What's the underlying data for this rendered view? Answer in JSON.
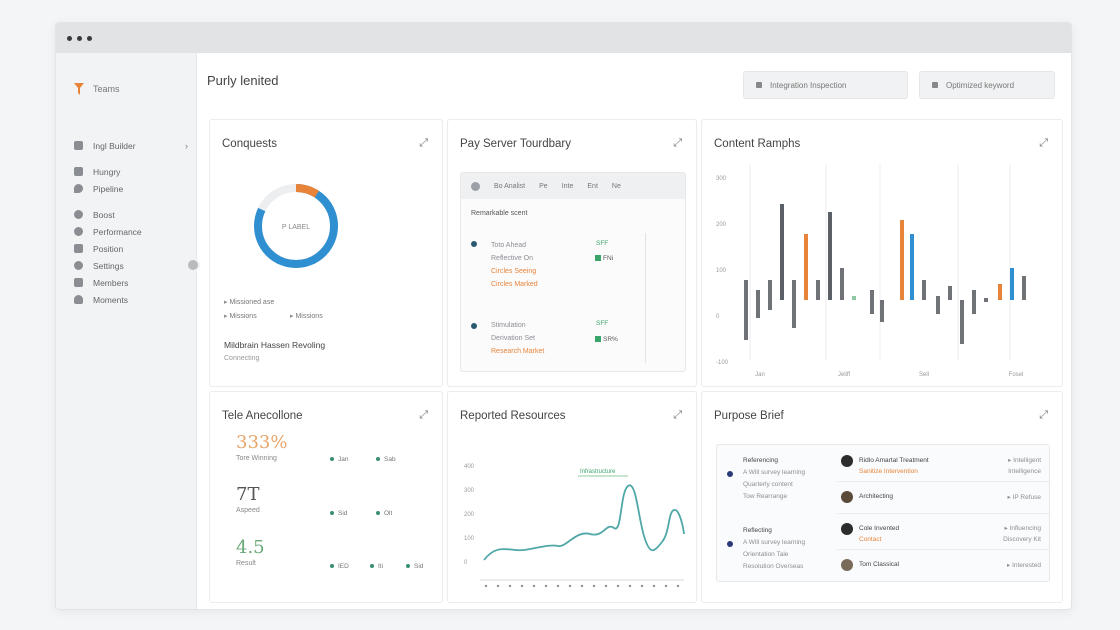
{
  "sidebar": {
    "brand": "Teams",
    "items": [
      {
        "label": "Ingl Builder",
        "icon": "folder-icon",
        "chevron": true
      },
      {
        "label": "Hungry",
        "icon": "grid-icon"
      },
      {
        "label": "Pipeline",
        "icon": "pin-icon"
      },
      {
        "label": "Boost",
        "icon": "gear-icon"
      },
      {
        "label": "Performance",
        "icon": "globe-icon"
      },
      {
        "label": "Position",
        "icon": "edit-icon"
      },
      {
        "label": "Settings",
        "icon": "gear-icon"
      },
      {
        "label": "Members",
        "icon": "shield-icon"
      },
      {
        "label": "Moments",
        "icon": "bell-icon"
      }
    ]
  },
  "header": {
    "title": "Purly lenited",
    "buttons": [
      "Integration Inspection",
      "Optimized keyword"
    ]
  },
  "cards": {
    "conquests": {
      "title": "Conquests",
      "donut_label": "P LABEL",
      "donut_value": 0.82,
      "legend": [
        "Missioned ase",
        "Missions",
        "Missions"
      ],
      "footer_title": "Mildbrain Hassen Revoling",
      "footer_sub": "Connecting"
    },
    "summary": {
      "title": "Pay Server Tourdbary",
      "tabs": [
        "Bo Analist",
        "Pe",
        "Inte",
        "Ent",
        "Ne"
      ],
      "section": "Remarkable scent",
      "groups": [
        {
          "line1": "Toto Ahead",
          "line2": "Reflective On",
          "line3": "Circles Seeing",
          "line4": "Circles Marked",
          "val1": "SFF",
          "val2": "FNi"
        },
        {
          "line1": "Stimulation",
          "line2": "Derivation Set",
          "line3": "Research Market",
          "val1": "SFF",
          "val2": "SR%"
        }
      ]
    },
    "content": {
      "title": "Content Ramphs",
      "yticks": [
        "300",
        "200",
        "100",
        "0",
        "-100"
      ],
      "xticks": [
        "Jan",
        "Jeliff",
        "Sell",
        "Fosel"
      ]
    },
    "tele": {
      "title": "Tele Anecollone",
      "stats": [
        {
          "value": "333%",
          "label": "Tore Winning",
          "tags": [
            "Jan",
            "Sab"
          ]
        },
        {
          "value": "7T",
          "label": "Aspeed",
          "tags": [
            "Sid",
            "Olt"
          ]
        },
        {
          "value": "4.5",
          "label": "Result",
          "tags": [
            "IED",
            "Iti",
            "Sid"
          ]
        }
      ]
    },
    "reported": {
      "title": "Reported Resources",
      "annotation": "Infrastructure",
      "yticks": [
        "400",
        "300",
        "200",
        "100",
        "0"
      ]
    },
    "purpose": {
      "title": "Purpose Brief",
      "left_groups": [
        {
          "head": "Referencing",
          "sub1": "A Will survey learning",
          "sub2": "Quarterly content",
          "sub3": "Tow Rearrange"
        },
        {
          "head": "Reflecting",
          "sub1": "A Will survey learning",
          "sub2": "Orientation Tale",
          "sub3": "Resolution Overseas"
        }
      ],
      "people": [
        {
          "name": "Ridlo Amartal Treatment",
          "sub": "Sanitize Intervention",
          "meta": "Intelligent",
          "meta2": "Intelligence"
        },
        {
          "name": "Architecting",
          "sub": "",
          "meta": "IP Refuse",
          "meta2": ""
        },
        {
          "name": "Cole Invented",
          "sub": "Contact",
          "meta": "Influencing",
          "meta2": "Discovery Kit"
        },
        {
          "name": "Tom Classical",
          "sub": "",
          "meta": "Interested",
          "meta2": ""
        }
      ]
    }
  },
  "colors": {
    "accent_blue": "#2f8fd1",
    "accent_orange": "#e8843a",
    "accent_green": "#3aa56a",
    "teal_line": "#4fa7a8",
    "grey_bar": "#6f7377"
  }
}
